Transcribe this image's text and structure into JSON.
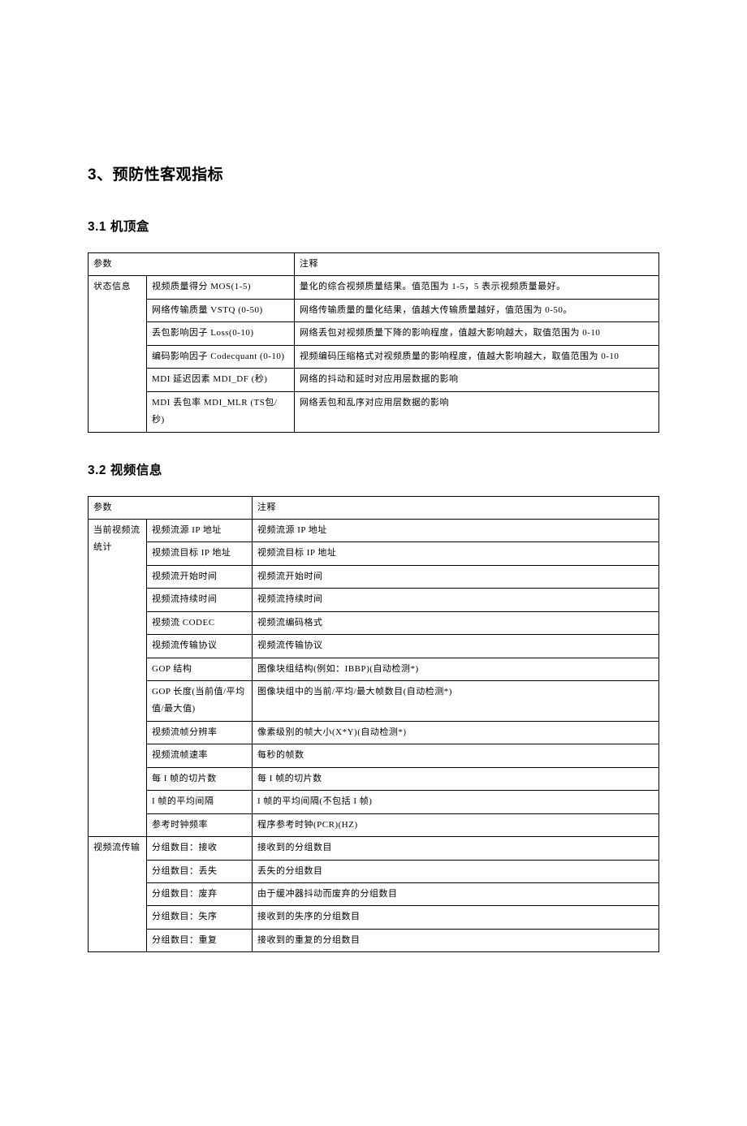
{
  "h1": "3、预防性客观指标",
  "sec1": {
    "title": "3.1 机顶盒",
    "hdr_param": "参数",
    "hdr_desc": "注释",
    "cat": "状态信息",
    "rows": [
      {
        "p": "视频质量得分 MOS(1-5)",
        "d": "量化的综合视频质量结果。值范围为 1-5，5 表示视频质量最好。"
      },
      {
        "p": "网络传输质量 VSTQ (0-50)",
        "d": "网络传输质量的量化结果，值越大传输质量越好，值范围为 0-50。"
      },
      {
        "p": "丢包影响因子 Loss(0-10)",
        "d": "网络丢包对视频质量下降的影响程度，值越大影响越大，取值范围为 0-10"
      },
      {
        "p": "编码影响因子 Codecquant (0-10)",
        "d": "视频编码压缩格式对视频质量的影响程度，值越大影响越大，取值范围为 0-10"
      },
      {
        "p": "MDI 延迟因素 MDI_DF (秒)",
        "d": "网络的抖动和延时对应用层数据的影响"
      },
      {
        "p": "MDI 丢包率 MDI_MLR (TS包/秒)",
        "d": "网络丢包和乱序对应用层数据的影响"
      }
    ]
  },
  "sec2": {
    "title": "3.2 视频信息",
    "hdr_param": "参数",
    "hdr_desc": "注释",
    "groups": [
      {
        "cat": "当前视频流统计",
        "rows": [
          {
            "p": "视频流源 IP 地址",
            "d": "视频流源 IP 地址"
          },
          {
            "p": "视频流目标 IP 地址",
            "d": "视频流目标 IP 地址"
          },
          {
            "p": "视频流开始时间",
            "d": "视频流开始时间"
          },
          {
            "p": "视频流持续时间",
            "d": "视频流持续时间"
          },
          {
            "p": "视频流 CODEC",
            "d": "视频流编码格式"
          },
          {
            "p": "视频流传输协议",
            "d": "视频流传输协议"
          },
          {
            "p": "GOP 结构",
            "d": "图像块组结构(例如：IBBP)(自动检测*)"
          },
          {
            "p": "GOP 长度(当前值/平均值/最大值)",
            "d": "图像块组中的当前/平均/最大帧数目(自动检测*)"
          },
          {
            "p": "视频流帧分辨率",
            "d": "像素级别的帧大小(X*Y)(自动检测*)"
          },
          {
            "p": "视频流帧速率",
            "d": "每秒的帧数"
          },
          {
            "p": "每 I 帧的切片数",
            "d": "每 I 帧的切片数"
          },
          {
            "p": "I 帧的平均间隔",
            "d": "I 帧的平均间隔(不包括 I 帧)"
          },
          {
            "p": "参考时钟频率",
            "d": "程序参考时钟(PCR)(HZ)"
          }
        ]
      },
      {
        "cat": "视频流传输",
        "rows": [
          {
            "p": "分组数目：接收",
            "d": "接收到的分组数目"
          },
          {
            "p": "分组数目：丢失",
            "d": "丢失的分组数目"
          },
          {
            "p": "分组数目：废弃",
            "d": "由于缓冲器抖动而废弃的分组数目"
          },
          {
            "p": "分组数目：失序",
            "d": "接收到的失序的分组数目"
          },
          {
            "p": "分组数目：重复",
            "d": "接收到的重复的分组数目"
          }
        ]
      }
    ]
  }
}
